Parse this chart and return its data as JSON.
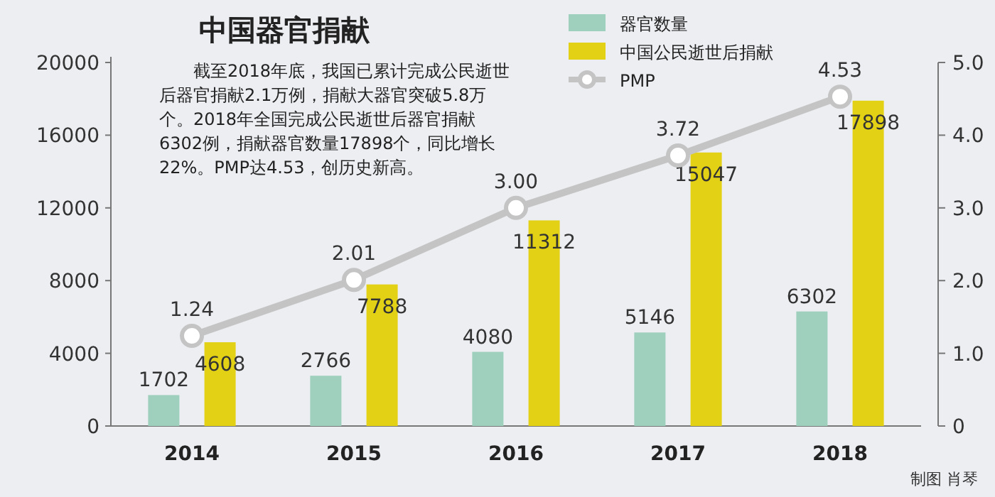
{
  "chart_data": {
    "type": "bar",
    "title": "中国器官捐献",
    "annotations": [
      "截至2018年底，我国已累计完成公民逝世后器官捐献2.1万例，捐献大器官突破5.8万个。2018年全国完成公民逝世后器官捐献6302例，捐献器官数量17898个，同比增长22%。PMP达4.53，创历史新高。",
      "制图 肖琴"
    ],
    "categories": [
      "2014",
      "2015",
      "2016",
      "2017",
      "2018"
    ],
    "series": [
      {
        "name": "器官数量",
        "color": "#9fcfbd",
        "values": [
          1702,
          2766,
          4080,
          5146,
          6302
        ]
      },
      {
        "name": "中国公民逝世后捐献",
        "color": "#e3d116",
        "values": [
          4608,
          7788,
          11312,
          15047,
          17898
        ]
      },
      {
        "name": "PMP",
        "type": "line",
        "axis": "y2",
        "color": "#c4c4c4",
        "marker": "circle",
        "values": [
          1.24,
          2.01,
          3.0,
          3.72,
          4.53
        ],
        "value_labels": [
          "1.24",
          "2.01",
          "3.00",
          "3.72",
          "4.53"
        ]
      }
    ],
    "ylim": [
      0,
      20000
    ],
    "yticks": [
      0,
      4000,
      8000,
      12000,
      16000,
      20000
    ],
    "y2lim": [
      0,
      5
    ],
    "y2ticks": [
      {
        "value": 0,
        "label": "0"
      },
      {
        "value": 1,
        "label": "1.0"
      },
      {
        "value": 2,
        "label": "2.0"
      },
      {
        "value": 3,
        "label": "3.0"
      },
      {
        "value": 4,
        "label": "4.0"
      },
      {
        "value": 5,
        "label": "5.0"
      }
    ],
    "data_labels": true,
    "legend": "top right",
    "grid": false
  }
}
